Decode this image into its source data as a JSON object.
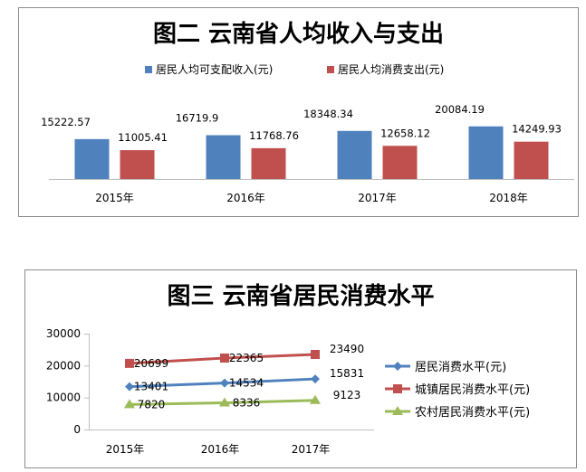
{
  "chart_data": [
    {
      "type": "bar",
      "title": "图二 云南省人均收入与支出",
      "categories": [
        "2015年",
        "2016年",
        "2017年",
        "2018年"
      ],
      "series": [
        {
          "name": "居民人均可支配收入(元)",
          "values": [
            15222.57,
            16719.9,
            18348.34,
            20084.19
          ],
          "labels": [
            "15222.57",
            "16719.9",
            "18348.34",
            "20084.19"
          ],
          "color": "#4f81bd"
        },
        {
          "name": "居民人均消费支出(元)",
          "values": [
            11005.41,
            11768.76,
            12658.12,
            14249.93
          ],
          "labels": [
            "11005.41",
            "11768.76",
            "12658.12",
            "14249.93"
          ],
          "color": "#c0504d"
        }
      ],
      "legend": "top",
      "grid": false
    },
    {
      "type": "line",
      "title": "图三 云南省居民消费水平",
      "categories": [
        "2015年",
        "2016年",
        "2017年"
      ],
      "yticks": [
        "0",
        "10000",
        "20000",
        "30000"
      ],
      "ylim": [
        0,
        30000
      ],
      "series": [
        {
          "name": "居民消费水平(元)",
          "values": [
            13401,
            14534,
            15831
          ],
          "labels": [
            "13401",
            "14534",
            "15831"
          ],
          "color": "#4f81bd",
          "marker": "diamond"
        },
        {
          "name": "城镇居民消费水平(元)",
          "values": [
            20699,
            22365,
            23490
          ],
          "labels": [
            "20699",
            "22365",
            "23490"
          ],
          "color": "#c0504d",
          "marker": "square"
        },
        {
          "name": "农村居民消费水平(元)",
          "values": [
            7820,
            8336,
            9123
          ],
          "labels": [
            "7820",
            "8336",
            "9123"
          ],
          "color": "#9bbb59",
          "marker": "triangle"
        }
      ],
      "legend": "right",
      "grid": false
    }
  ]
}
